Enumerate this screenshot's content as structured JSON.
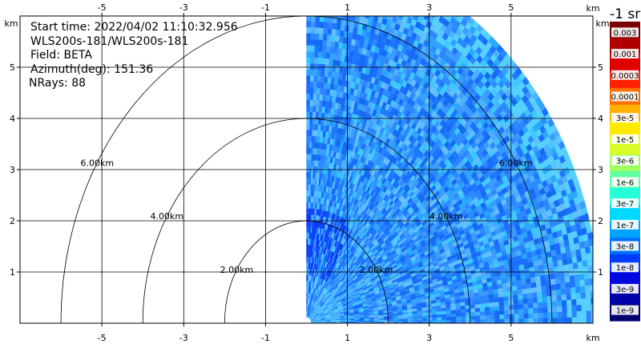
{
  "info": {
    "start_time": "Start time: 2022/04/02 11:10:32.956",
    "station": "WLS200s-181/WLS200s-181",
    "field": "Field: BETA",
    "azimuth": "Azimuth(deg): 151.36",
    "nrays": "NRays: 88"
  },
  "colorbar": {
    "title": "-1 sr",
    "labels": [
      "0.003",
      "0.001",
      "0.0003",
      "0.0001",
      "3e-5",
      "1e-5",
      "3e-6",
      "1e-6",
      "3e-7",
      "1e-7",
      "3e-8",
      "1e-8",
      "3e-9",
      "1e-9"
    ],
    "colors": [
      "#7d0000",
      "#b00000",
      "#e00000",
      "#ff2200",
      "#ff7000",
      "#ffb000",
      "#ffea00",
      "#d9ff26",
      "#a0ff60",
      "#60ffa0",
      "#25ffda",
      "#00d8ff",
      "#00a4ff",
      "#0070ff",
      "#003cff",
      "#0008e0",
      "#0000a8",
      "#000070"
    ]
  },
  "chart_data": {
    "type": "heatmap",
    "title": "",
    "xlabel": "km",
    "ylabel": "km",
    "xlim": [
      -7,
      7
    ],
    "ylim": [
      0,
      6
    ],
    "x_ticks": [
      -5,
      -3,
      -1,
      1,
      3,
      5
    ],
    "y_ticks": [
      1,
      2,
      3,
      4,
      5
    ],
    "range_rings": [
      {
        "radius_km": 2,
        "label": "2.00km"
      },
      {
        "radius_km": 4,
        "label": "4.00km"
      },
      {
        "radius_km": 6,
        "label": "6.00km"
      }
    ],
    "sector": {
      "x_min_km": 0,
      "max_range_km": 7.2,
      "dominant_value": "1e-8 to 1e-7"
    }
  }
}
